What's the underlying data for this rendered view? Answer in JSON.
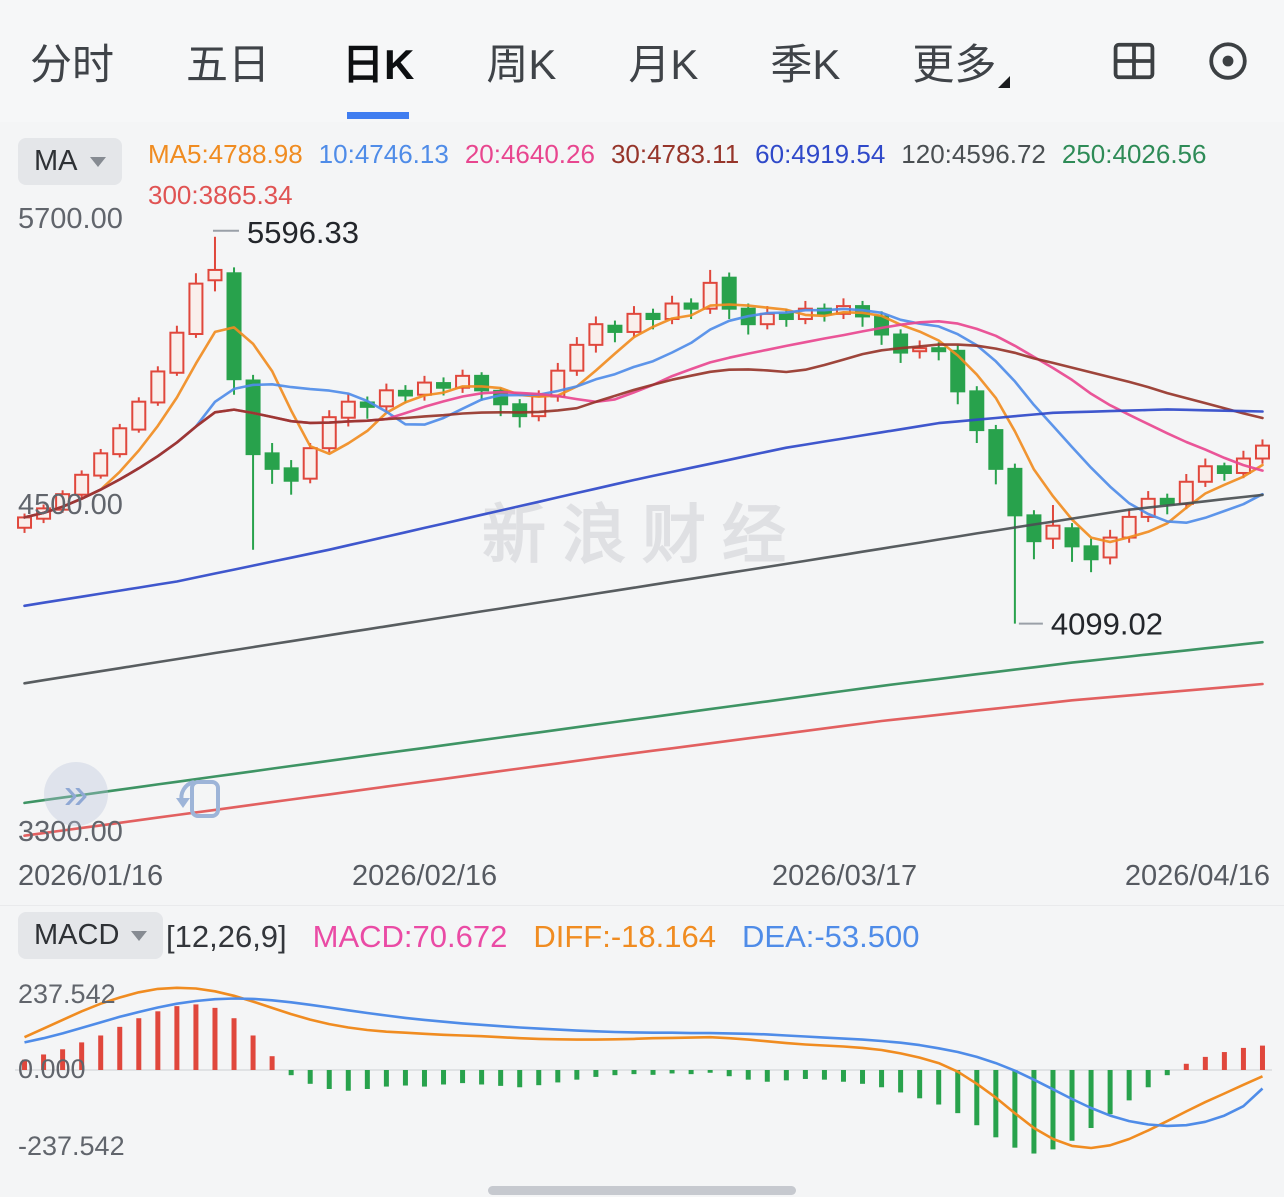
{
  "tabs": {
    "items": [
      "分时",
      "五日",
      "日K",
      "周K",
      "月K",
      "季K",
      "更多"
    ],
    "active_index": 2
  },
  "ma_panel": {
    "selector": "MA",
    "values": [
      {
        "text": "MA5:4788.98",
        "color": "#f08c21"
      },
      {
        "text": "10:4746.13",
        "color": "#4f8ce8"
      },
      {
        "text": "20:4640.26",
        "color": "#e8468f"
      },
      {
        "text": "30:4783.11",
        "color": "#96352a"
      },
      {
        "text": "60:4919.54",
        "color": "#2f49c9"
      },
      {
        "text": "120:4596.72",
        "color": "#4a4f52"
      },
      {
        "text": "250:4026.56",
        "color": "#2e8b57"
      },
      {
        "text": "300:3865.34",
        "color": "#e05353"
      }
    ]
  },
  "price_chart": {
    "watermark": "新浪财经",
    "y_labels": [
      "5700.00",
      "4500.00",
      "3300.00"
    ],
    "x_labels": [
      "2026/01/16",
      "2026/02/16",
      "2026/03/17",
      "2026/04/16"
    ]
  },
  "macd_panel": {
    "selector": "MACD",
    "params": "[12,26,9]",
    "macd_text": {
      "text": "MACD:70.672",
      "color": "#ea4ba5"
    },
    "diff_text": {
      "text": "DIFF:-18.164",
      "color": "#f08c21"
    },
    "dea_text": {
      "text": "DEA:-53.500",
      "color": "#4f8ce8"
    },
    "y_labels": [
      "237.542",
      "0.000",
      "-237.542"
    ]
  },
  "chart_data": [
    {
      "type": "candlestick",
      "timeframe": "日K",
      "ylim": [
        3300,
        5700
      ],
      "x_labels": [
        "2026/01/16",
        "2026/02/16",
        "2026/03/17",
        "2026/04/16"
      ],
      "up_color": "#e0473c",
      "down_color": "#28a24c",
      "candles": [
        [
          4470,
          4510,
          4450,
          4525
        ],
        [
          4505,
          4545,
          4488,
          4560
        ],
        [
          4540,
          4600,
          4528,
          4615
        ],
        [
          4598,
          4675,
          4585,
          4692
        ],
        [
          4672,
          4758,
          4660,
          4775
        ],
        [
          4755,
          4855,
          4742,
          4872
        ],
        [
          4850,
          4958,
          4838,
          4975
        ],
        [
          4955,
          5075,
          4942,
          5095
        ],
        [
          5070,
          5225,
          5058,
          5252
        ],
        [
          5220,
          5415,
          5205,
          5455
        ],
        [
          5428,
          5468,
          5385,
          5596.33
        ],
        [
          5455,
          5045,
          4985,
          5478
        ],
        [
          5040,
          4755,
          4385,
          5062
        ],
        [
          4758,
          4698,
          4640,
          4798
        ],
        [
          4700,
          4652,
          4598,
          4732
        ],
        [
          4660,
          4778,
          4642,
          4798
        ],
        [
          4778,
          4898,
          4762,
          4925
        ],
        [
          4896,
          4958,
          4862,
          4988
        ],
        [
          4955,
          4938,
          4892,
          4978
        ],
        [
          4940,
          5002,
          4922,
          5028
        ],
        [
          5000,
          4982,
          4952,
          5022
        ],
        [
          4985,
          5032,
          4962,
          5058
        ],
        [
          5030,
          5012,
          4982,
          5052
        ],
        [
          5012,
          5058,
          4992,
          5082
        ],
        [
          5058,
          5002,
          4962,
          5072
        ],
        [
          5000,
          4948,
          4902,
          5012
        ],
        [
          4948,
          4902,
          4858,
          4968
        ],
        [
          4902,
          4978,
          4882,
          5002
        ],
        [
          4978,
          5078,
          4958,
          5108
        ],
        [
          5078,
          5178,
          5058,
          5208
        ],
        [
          5178,
          5258,
          5148,
          5288
        ],
        [
          5252,
          5228,
          5188,
          5272
        ],
        [
          5228,
          5298,
          5208,
          5328
        ],
        [
          5298,
          5278,
          5238,
          5318
        ],
        [
          5278,
          5338,
          5258,
          5368
        ],
        [
          5338,
          5318,
          5278,
          5358
        ],
        [
          5318,
          5418,
          5298,
          5468
        ],
        [
          5438,
          5318,
          5278,
          5458
        ],
        [
          5318,
          5258,
          5218,
          5338
        ],
        [
          5258,
          5298,
          5238,
          5328
        ],
        [
          5298,
          5278,
          5248,
          5318
        ],
        [
          5278,
          5318,
          5258,
          5348
        ],
        [
          5318,
          5298,
          5268,
          5338
        ],
        [
          5298,
          5328,
          5278,
          5358
        ],
        [
          5328,
          5288,
          5248,
          5348
        ],
        [
          5288,
          5218,
          5178,
          5308
        ],
        [
          5218,
          5148,
          5108,
          5238
        ],
        [
          5155,
          5165,
          5125,
          5195
        ],
        [
          5165,
          5155,
          5118,
          5188
        ],
        [
          5155,
          4998,
          4948,
          5178
        ],
        [
          4998,
          4848,
          4798,
          5018
        ],
        [
          4848,
          4698,
          4638,
          4868
        ],
        [
          4698,
          4518,
          4099.02,
          4718
        ],
        [
          4518,
          4418,
          4348,
          4538
        ],
        [
          4428,
          4478,
          4388,
          4558
        ],
        [
          4468,
          4398,
          4338,
          4488
        ],
        [
          4398,
          4348,
          4298,
          4428
        ],
        [
          4355,
          4432,
          4328,
          4462
        ],
        [
          4432,
          4512,
          4412,
          4542
        ],
        [
          4512,
          4582,
          4492,
          4612
        ],
        [
          4582,
          4562,
          4522,
          4602
        ],
        [
          4562,
          4648,
          4542,
          4678
        ],
        [
          4648,
          4708,
          4628,
          4738
        ],
        [
          4708,
          4682,
          4652,
          4722
        ],
        [
          4682,
          4738,
          4662,
          4768
        ],
        [
          4738,
          4788,
          4718,
          4812
        ]
      ],
      "ma_series": [
        {
          "name": "MA5",
          "window": 5,
          "color": "#f08c21"
        },
        {
          "name": "MA10",
          "window": 10,
          "color": "#4f8ce8"
        },
        {
          "name": "MA20",
          "window": 20,
          "color": "#e8468f"
        },
        {
          "name": "MA30",
          "window": 30,
          "color": "#96352a"
        },
        {
          "name": "MA60",
          "color": "#2f49c9",
          "points": [
            [
              0,
              4168
            ],
            [
              8,
              4262
            ],
            [
              16,
              4385
            ],
            [
              24,
              4520
            ],
            [
              32,
              4655
            ],
            [
              40,
              4780
            ],
            [
              48,
              4875
            ],
            [
              54,
              4915
            ],
            [
              60,
              4928
            ],
            [
              65,
              4920
            ]
          ]
        },
        {
          "name": "MA120",
          "color": "#4a4f52",
          "points": [
            [
              0,
              3868
            ],
            [
              10,
              3985
            ],
            [
              20,
              4100
            ],
            [
              30,
              4215
            ],
            [
              40,
              4330
            ],
            [
              50,
              4448
            ],
            [
              58,
              4540
            ],
            [
              65,
              4597
            ]
          ]
        },
        {
          "name": "MA250",
          "color": "#2e8b57",
          "points": [
            [
              0,
              3405
            ],
            [
              15,
              3558
            ],
            [
              30,
              3708
            ],
            [
              45,
              3858
            ],
            [
              55,
              3948
            ],
            [
              65,
              4027
            ]
          ]
        },
        {
          "name": "MA300",
          "color": "#e05353",
          "points": [
            [
              0,
              3278
            ],
            [
              15,
              3428
            ],
            [
              30,
              3578
            ],
            [
              45,
              3722
            ],
            [
              55,
              3802
            ],
            [
              65,
              3865
            ]
          ]
        }
      ],
      "annotations": {
        "high": {
          "index": 10,
          "value": 5596.33,
          "label": "5596.33"
        },
        "low": {
          "index": 52,
          "value": 4099.02,
          "label": "4099.02"
        }
      }
    },
    {
      "type": "macd",
      "params": [
        12,
        26,
        9
      ],
      "latest": {
        "macd": 70.672,
        "diff": -18.164,
        "dea": -53.5
      },
      "ylim": [
        -237.542,
        237.542
      ],
      "bar_up_color": "#e0473c",
      "bar_down_color": "#28a24c",
      "diff_color": "#f08c21",
      "dea_color": "#4f8ce8",
      "bars": [
        30,
        45,
        60,
        80,
        100,
        125,
        150,
        170,
        185,
        190,
        180,
        150,
        100,
        40,
        -15,
        -40,
        -55,
        -60,
        -55,
        -48,
        -45,
        -48,
        -42,
        -38,
        -42,
        -46,
        -50,
        -44,
        -36,
        -28,
        -20,
        -15,
        -12,
        -14,
        -10,
        -12,
        -8,
        -18,
        -28,
        -34,
        -30,
        -26,
        -28,
        -34,
        -40,
        -50,
        -65,
        -82,
        -100,
        -125,
        -160,
        -195,
        -225,
        -242,
        -230,
        -205,
        -168,
        -128,
        -88,
        -50,
        -15,
        18,
        38,
        52,
        64,
        70.672
      ],
      "diff": [
        95,
        120,
        145,
        170,
        192,
        210,
        225,
        235,
        238,
        236,
        228,
        215,
        198,
        180,
        162,
        146,
        133,
        123,
        116,
        111,
        108,
        105,
        102,
        100,
        98,
        95,
        92,
        90,
        89,
        88,
        88,
        89,
        90,
        92,
        93,
        94,
        95,
        92,
        88,
        83,
        78,
        74,
        71,
        68,
        64,
        58,
        48,
        36,
        20,
        -5,
        -40,
        -80,
        -125,
        -168,
        -200,
        -220,
        -226,
        -218,
        -200,
        -175,
        -148,
        -120,
        -93,
        -68,
        -43,
        -18.164
      ],
      "dea": [
        80,
        92,
        106,
        122,
        138,
        154,
        168,
        181,
        192,
        200,
        205,
        207,
        206,
        202,
        196,
        189,
        181,
        173,
        165,
        158,
        151,
        145,
        140,
        135,
        131,
        127,
        123,
        120,
        117,
        114,
        112,
        110,
        109,
        108,
        108,
        107,
        107,
        106,
        105,
        103,
        100,
        97,
        94,
        91,
        88,
        84,
        79,
        72,
        63,
        52,
        38,
        20,
        -2,
        -28,
        -56,
        -84,
        -110,
        -132,
        -148,
        -158,
        -162,
        -160,
        -150,
        -132,
        -105,
        -53.5
      ]
    }
  ]
}
